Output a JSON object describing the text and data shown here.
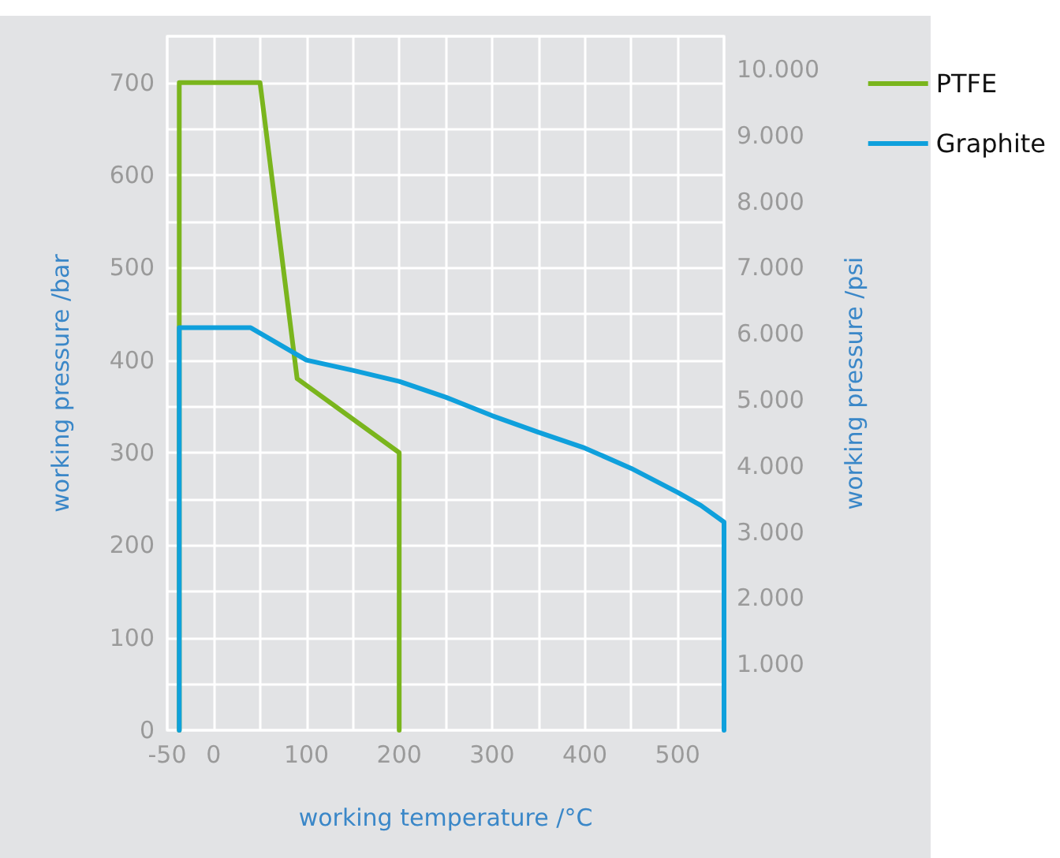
{
  "chart_data": {
    "type": "line",
    "xlabel": "working temperature /°C",
    "ylabel": "working pressure /bar",
    "y2label": "working pressure /psi",
    "series": [
      {
        "name": "PTFE",
        "color": "#7ab51d",
        "x": [
          -37,
          -37,
          50,
          90,
          200,
          200
        ],
        "values": [
          0,
          700,
          700,
          380,
          300,
          0
        ]
      },
      {
        "name": "Graphite",
        "color": "#0fa0dc",
        "x": [
          -37,
          -37,
          40,
          100,
          150,
          200,
          250,
          300,
          350,
          400,
          450,
          500,
          525,
          550,
          550
        ],
        "values": [
          0,
          435,
          435,
          400,
          389,
          377,
          360,
          340,
          322,
          305,
          283,
          257,
          243,
          225,
          0
        ]
      }
    ],
    "xlim": [
      -50,
      550
    ],
    "xticks": [
      -50,
      0,
      {
        "value": 50,
        "label": null
      },
      100,
      {
        "value": 150,
        "label": null
      },
      200,
      {
        "value": 250,
        "label": null
      },
      300,
      {
        "value": 350,
        "label": null
      },
      400,
      {
        "value": 450,
        "label": null
      },
      500,
      {
        "value": 550,
        "label": null
      }
    ],
    "ylim": [
      0,
      750
    ],
    "yticks": [
      0,
      {
        "value": 50,
        "label": null
      },
      100,
      {
        "value": 150,
        "label": null
      },
      200,
      {
        "value": 250,
        "label": null
      },
      300,
      {
        "value": 350,
        "label": null
      },
      400,
      {
        "value": 450,
        "label": null
      },
      500,
      {
        "value": 550,
        "label": null
      },
      600,
      {
        "value": 650,
        "label": null
      },
      700,
      {
        "value": 750,
        "label": null
      }
    ],
    "y2lim": [
      0,
      10500
    ],
    "y2ticks": [
      {
        "value": 1000,
        "label": "1.000"
      },
      {
        "value": 2000,
        "label": "2.000"
      },
      {
        "value": 3000,
        "label": "3.000"
      },
      {
        "value": 4000,
        "label": "4.000"
      },
      {
        "value": 5000,
        "label": "5.000"
      },
      {
        "value": 6000,
        "label": "6.000"
      },
      {
        "value": 7000,
        "label": "7.000"
      },
      {
        "value": 8000,
        "label": "8.000"
      },
      {
        "value": 9000,
        "label": "9.000"
      },
      {
        "value": 10000,
        "label": "10.000"
      }
    ],
    "grid": true,
    "legend": "top right",
    "marker": "none",
    "line_style": "solid"
  }
}
